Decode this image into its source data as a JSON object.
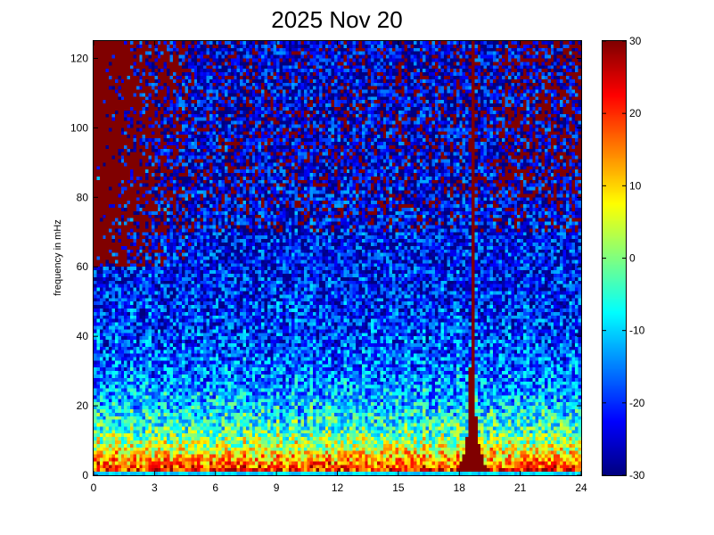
{
  "chart_data": {
    "type": "heatmap",
    "title": "2025 Nov 20",
    "xlabel": "",
    "ylabel": "frequency in mHz",
    "xlim": [
      0,
      24
    ],
    "ylim": [
      0,
      125
    ],
    "x_ticks": [
      0,
      3,
      6,
      9,
      12,
      15,
      18,
      21,
      24
    ],
    "x_tick_labels": [
      "0",
      "3",
      "6",
      "9",
      "12",
      "15",
      "18",
      "21",
      "24"
    ],
    "y_ticks": [
      0,
      20,
      40,
      60,
      80,
      100,
      120
    ],
    "y_tick_labels": [
      "0",
      "20",
      "40",
      "60",
      "80",
      "100",
      "120"
    ],
    "colorbar": {
      "colormap": "jet",
      "clim": [
        -30,
        30
      ],
      "ticks": [
        30,
        20,
        10,
        0,
        -10,
        -20,
        -30
      ],
      "tick_labels": [
        "30",
        "20",
        "10",
        "0",
        "-10",
        "-20",
        "-30"
      ]
    },
    "grid": false,
    "features": [
      {
        "description": "broad high-power event",
        "x_start": 18.3,
        "x_end": 19.0,
        "y_range": [
          0,
          125
        ],
        "value": 30
      },
      {
        "description": "high power at high frequencies early in the day",
        "x_range": [
          0,
          5
        ],
        "y_range": [
          60,
          125
        ],
        "value": 30
      },
      {
        "description": "elevated power near zero frequency",
        "x_range": [
          0,
          24
        ],
        "y_range": [
          0,
          20
        ],
        "value_range": [
          0,
          20
        ]
      }
    ]
  },
  "colors": {
    "background": "#ffffff",
    "axis": "#000000"
  }
}
